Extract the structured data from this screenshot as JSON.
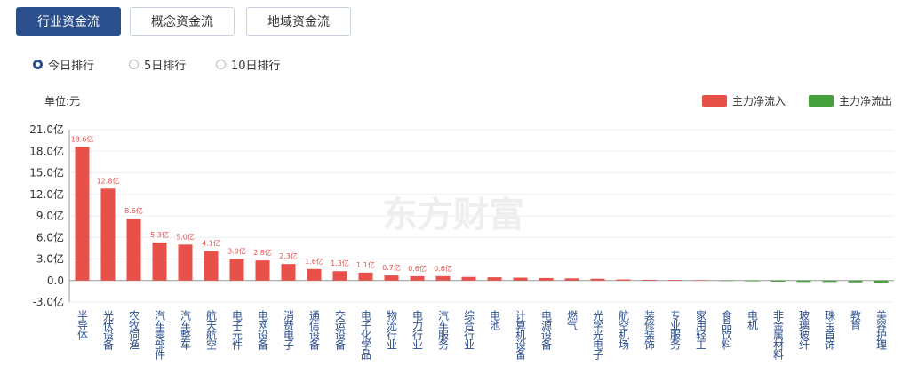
{
  "tabs": [
    {
      "label": "行业资金流",
      "active": true
    },
    {
      "label": "概念资金流",
      "active": false
    },
    {
      "label": "地域资金流",
      "active": false
    }
  ],
  "radios": [
    {
      "label": "今日排行",
      "checked": true
    },
    {
      "label": "5日排行",
      "checked": false
    },
    {
      "label": "10日排行",
      "checked": false
    }
  ],
  "chart_data": {
    "type": "bar",
    "unit_label": "单位:元",
    "watermark": "东方财富",
    "categories": [
      "半导体",
      "光伏设备",
      "农牧饲渔",
      "汽车零部件",
      "汽车整车",
      "航天航空",
      "电子元件",
      "电网设备",
      "消费电子",
      "通信设备",
      "交运设备",
      "电子化学品",
      "物流行业",
      "电力行业",
      "汽车服务",
      "综合行业",
      "电池",
      "计算机设备",
      "电源设备",
      "燃气",
      "光学光电子",
      "航空机场",
      "装修装饰",
      "专业服务",
      "家用轻工",
      "食品饮料",
      "电机",
      "非金属材料",
      "玻璃玻纤",
      "珠宝首饰",
      "教育",
      "美容护理"
    ],
    "values": [
      18.6,
      12.8,
      8.6,
      5.3,
      5.0,
      4.1,
      3.0,
      2.8,
      2.3,
      1.6,
      1.3,
      1.1,
      0.7,
      0.6,
      0.6,
      0.5,
      0.45,
      0.4,
      0.35,
      0.3,
      0.25,
      0.15,
      0.1,
      0.08,
      0.05,
      -0.05,
      -0.1,
      -0.15,
      -0.2,
      -0.2,
      -0.25,
      -0.3
    ],
    "value_labels": [
      "18.6亿",
      "12.8亿",
      "8.6亿",
      "5.3亿",
      "5.0亿",
      "4.1亿",
      "3.0亿",
      "2.8亿",
      "2.3亿",
      "1.6亿",
      "1.3亿",
      "1.1亿",
      "0.7亿",
      "0.6亿",
      "0.6亿",
      null,
      null,
      null,
      null,
      null,
      null,
      null,
      null,
      null,
      null,
      null,
      null,
      null,
      null,
      null,
      null,
      null
    ],
    "legend": [
      {
        "name": "主力净流入",
        "color": "#e8504a"
      },
      {
        "name": "主力净流出",
        "color": "#46a03e"
      }
    ],
    "ylim": [
      -3,
      21
    ],
    "yticks": [
      {
        "value": -3,
        "label": "-3.0亿"
      },
      {
        "value": 0,
        "label": "0.0"
      },
      {
        "value": 3,
        "label": "3.0亿"
      },
      {
        "value": 6,
        "label": "6.0亿"
      },
      {
        "value": 9,
        "label": "9.0亿"
      },
      {
        "value": 12,
        "label": "12.0亿"
      },
      {
        "value": 15,
        "label": "15.0亿"
      },
      {
        "value": 18,
        "label": "18.0亿"
      },
      {
        "value": 21,
        "label": "21.0亿"
      }
    ],
    "grid": true
  }
}
